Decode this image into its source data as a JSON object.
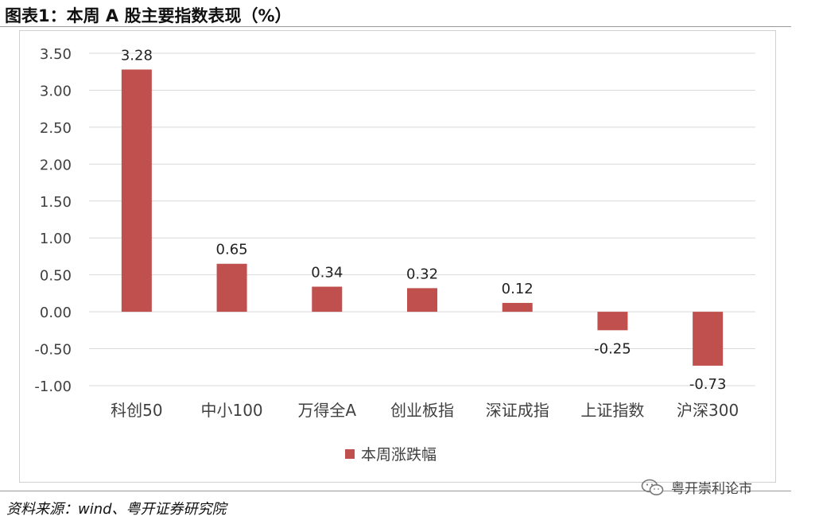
{
  "figure": {
    "title": "图表1：本周 A 股主要指数表现（%）",
    "source": "资料来源：wind、粤开证券研究院",
    "watermark": "粤开崇利论市",
    "watermark_icon": "wechat-icon"
  },
  "colors": {
    "bar": "#c0504d",
    "grid": "#d9d9d9",
    "axis_text": "#404040"
  },
  "chart_data": {
    "type": "bar",
    "title": "",
    "xlabel": "",
    "ylabel": "",
    "categories": [
      "科创50",
      "中小100",
      "万得全A",
      "创业板指",
      "深证成指",
      "上证指数",
      "沪深300"
    ],
    "series": [
      {
        "name": "本周涨跌幅",
        "values": [
          3.28,
          0.65,
          0.34,
          0.32,
          0.12,
          -0.25,
          -0.73
        ]
      }
    ],
    "data_labels": [
      "3.28",
      "0.65",
      "0.34",
      "0.32",
      "0.12",
      "-0.25",
      "-0.73"
    ],
    "ylim": [
      -1.0,
      3.5
    ],
    "yticks": [
      3.5,
      3.0,
      2.5,
      2.0,
      1.5,
      1.0,
      0.5,
      0.0,
      -0.5,
      -1.0
    ],
    "ytick_labels": [
      "3.50",
      "3.00",
      "2.50",
      "2.00",
      "1.50",
      "1.00",
      "0.50",
      "0.00",
      "-0.50",
      "-1.00"
    ],
    "grid": true,
    "legend_position": "bottom-center"
  }
}
